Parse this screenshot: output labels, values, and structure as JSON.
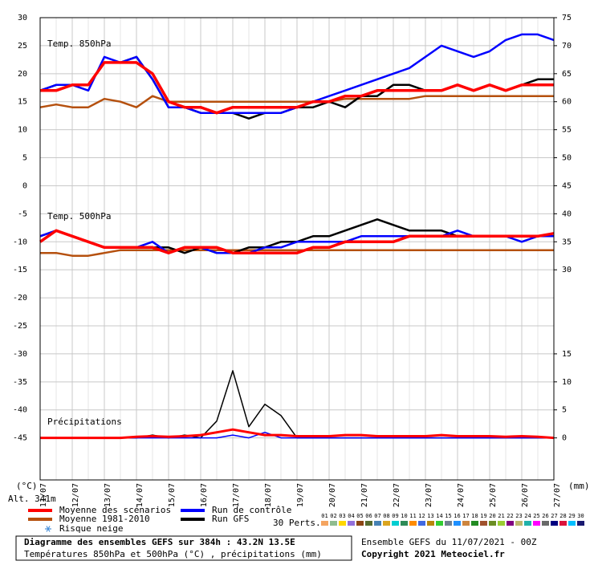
{
  "chart_data": {
    "type": "line",
    "title": "Diagramme des ensembles GEFS sur 384h : 43.2N 13.5E",
    "subtitle": "Températures 850hPa et 500hPa (°C) , précipitations (mm)",
    "run_label": "Ensemble GEFS du 11/07/2021 - 00Z",
    "copyright": "Copyright 2021 Meteociel.fr",
    "altitude": "Alt. 341m",
    "ylabel": "(°C)",
    "y2label": "(mm)",
    "panel_labels": [
      "Temp. 850hPa",
      "Temp. 500hPa",
      "Précipitations"
    ],
    "snow_label": "Risque neige",
    "perturbations_label": "30 Perts.",
    "categories": [
      "11/07",
      null,
      "12/07",
      null,
      "13/07",
      null,
      "14/07",
      null,
      "15/07",
      null,
      "16/07",
      null,
      "17/07",
      null,
      "18/07",
      null,
      "19/07",
      null,
      "20/07",
      null,
      "21/07",
      null,
      "22/07",
      null,
      "23/07",
      null,
      "24/07",
      null,
      "25/07",
      null,
      "26/07",
      null,
      "27/07"
    ],
    "ylim": [
      -52.5,
      30
    ],
    "yticks": [
      30,
      25,
      20,
      15,
      10,
      5,
      0,
      -5,
      -10,
      -15,
      -20,
      -25,
      -30,
      -35,
      -40,
      -45
    ],
    "y2lim": [
      -7.5,
      75
    ],
    "y2ticks": [
      75,
      70,
      65,
      60,
      55,
      50,
      45,
      40,
      35,
      30,
      15,
      10,
      5,
      0
    ],
    "grid": true,
    "series": [
      {
        "name": "Moyenne des scénarios",
        "color": "#ff0000",
        "t850": [
          17,
          17,
          18,
          18,
          22,
          22,
          22,
          20,
          15,
          14,
          14,
          13,
          14,
          14,
          14,
          14,
          14,
          15,
          15,
          16,
          16,
          17,
          17,
          17,
          17,
          17,
          18,
          17,
          18,
          17,
          18,
          18,
          18
        ],
        "t500": [
          -10,
          -8,
          -9,
          -10,
          -11,
          -11,
          -11,
          -11,
          -12,
          -11,
          -11,
          -11,
          -12,
          -12,
          -12,
          -12,
          -12,
          -11,
          -11,
          -10,
          -10,
          -10,
          -10,
          -9,
          -9,
          -9,
          -9,
          -9,
          -9,
          -9,
          -9,
          -9,
          -8.5
        ],
        "precip": [
          0,
          0,
          0,
          0,
          0,
          0,
          0.2,
          0.3,
          0.2,
          0.3,
          0.5,
          1,
          1.5,
          1,
          0.5,
          0.5,
          0.3,
          0.3,
          0.3,
          0.5,
          0.5,
          0.3,
          0.3,
          0.3,
          0.3,
          0.5,
          0.3,
          0.3,
          0.3,
          0.2,
          0.3,
          0.2,
          0
        ]
      },
      {
        "name": "Moyenne 1981-2010",
        "color": "#b5500e",
        "t850": [
          14,
          14.5,
          14,
          14,
          15.5,
          15,
          14,
          16,
          15,
          15,
          15,
          15,
          15,
          15,
          15,
          15,
          15,
          15,
          15,
          15.5,
          15.5,
          15.5,
          15.5,
          15.5,
          16,
          16,
          16,
          16,
          16,
          16,
          16,
          16,
          16
        ],
        "t500": [
          -12,
          -12,
          -12.5,
          -12.5,
          -12,
          -11.5,
          -11.5,
          -11.5,
          -11.5,
          -11.5,
          -11.5,
          -11.5,
          -11.5,
          -11.5,
          -11.5,
          -11.5,
          -11.5,
          -11.5,
          -11.5,
          -11.5,
          -11.5,
          -11.5,
          -11.5,
          -11.5,
          -11.5,
          -11.5,
          -11.5,
          -11.5,
          -11.5,
          -11.5,
          -11.5,
          -11.5,
          -11.5
        ]
      },
      {
        "name": "Run de contrôle",
        "color": "#0000ff",
        "t850": [
          17,
          18,
          18,
          17,
          23,
          22,
          23,
          19,
          14,
          14,
          13,
          13,
          13,
          13,
          13,
          13,
          14,
          15,
          16,
          17,
          18,
          19,
          20,
          21,
          23,
          25,
          24,
          23,
          24,
          26,
          27,
          27,
          26
        ],
        "t500": [
          -9,
          -8,
          -9,
          -10,
          -11,
          -11,
          -11,
          -10,
          -12,
          -11,
          -11,
          -12,
          -12,
          -12,
          -11,
          -11,
          -10,
          -10,
          -10,
          -10,
          -9,
          -9,
          -9,
          -9,
          -9,
          -9,
          -8,
          -9,
          -9,
          -9,
          -10,
          -9,
          -9
        ],
        "precip": [
          0,
          0,
          0,
          0,
          0,
          0,
          0,
          0,
          0,
          0,
          0,
          0,
          0.5,
          0,
          1,
          0,
          0,
          0,
          0,
          0,
          0,
          0,
          0,
          0,
          0,
          0,
          0,
          0,
          0,
          0,
          0,
          0,
          0
        ]
      },
      {
        "name": "Run GFS",
        "color": "#000000",
        "t850": [
          17,
          18,
          18,
          18,
          22,
          22,
          23,
          19,
          14,
          14,
          13,
          13,
          13,
          12,
          13,
          13,
          14,
          14,
          15,
          14,
          16,
          16,
          18,
          18,
          17,
          17,
          18,
          17,
          18,
          17,
          18,
          19,
          19
        ],
        "t500": [
          -9,
          -8,
          -9,
          -10,
          -11,
          -11,
          -11,
          -11,
          -11,
          -12,
          -11,
          -12,
          -12,
          -11,
          -11,
          -10,
          -10,
          -9,
          -9,
          -8,
          -7,
          -6,
          -7,
          -8,
          -8,
          -8,
          -9,
          -9,
          -9,
          -9,
          -9,
          -9,
          -9
        ],
        "precip": [
          0,
          0,
          0,
          0,
          0,
          0,
          0,
          0.5,
          0,
          0.5,
          0,
          3,
          12,
          2,
          6,
          4,
          0,
          0,
          0,
          0,
          0,
          0,
          0,
          0,
          0,
          0,
          0,
          0,
          0,
          0,
          0,
          0,
          0
        ]
      }
    ],
    "perturbations": [
      {
        "name": "01",
        "color": "#f4a460"
      },
      {
        "name": "02",
        "color": "#8fbc8f"
      },
      {
        "name": "03",
        "color": "#ffd700"
      },
      {
        "name": "04",
        "color": "#9370db"
      },
      {
        "name": "05",
        "color": "#8b4513"
      },
      {
        "name": "06",
        "color": "#556b2f"
      },
      {
        "name": "07",
        "color": "#4682b4"
      },
      {
        "name": "08",
        "color": "#daa520"
      },
      {
        "name": "09",
        "color": "#00ced1"
      },
      {
        "name": "10",
        "color": "#2e8b57"
      },
      {
        "name": "11",
        "color": "#ff8c00"
      },
      {
        "name": "12",
        "color": "#4169e1"
      },
      {
        "name": "13",
        "color": "#b8860b"
      },
      {
        "name": "14",
        "color": "#32cd32"
      },
      {
        "name": "15",
        "color": "#708090"
      },
      {
        "name": "16",
        "color": "#1e90ff"
      },
      {
        "name": "17",
        "color": "#cd853f"
      },
      {
        "name": "18",
        "color": "#228b22"
      },
      {
        "name": "19",
        "color": "#a0522d"
      },
      {
        "name": "20",
        "color": "#6b8e23"
      },
      {
        "name": "21",
        "color": "#9acd32"
      },
      {
        "name": "22",
        "color": "#800080"
      },
      {
        "name": "23",
        "color": "#bdb76b"
      },
      {
        "name": "24",
        "color": "#20b2aa"
      },
      {
        "name": "25",
        "color": "#ff00ff"
      },
      {
        "name": "26",
        "color": "#696969"
      },
      {
        "name": "27",
        "color": "#000080"
      },
      {
        "name": "28",
        "color": "#dc143c"
      },
      {
        "name": "29",
        "color": "#00bfff"
      },
      {
        "name": "30",
        "color": "#191970"
      }
    ]
  }
}
